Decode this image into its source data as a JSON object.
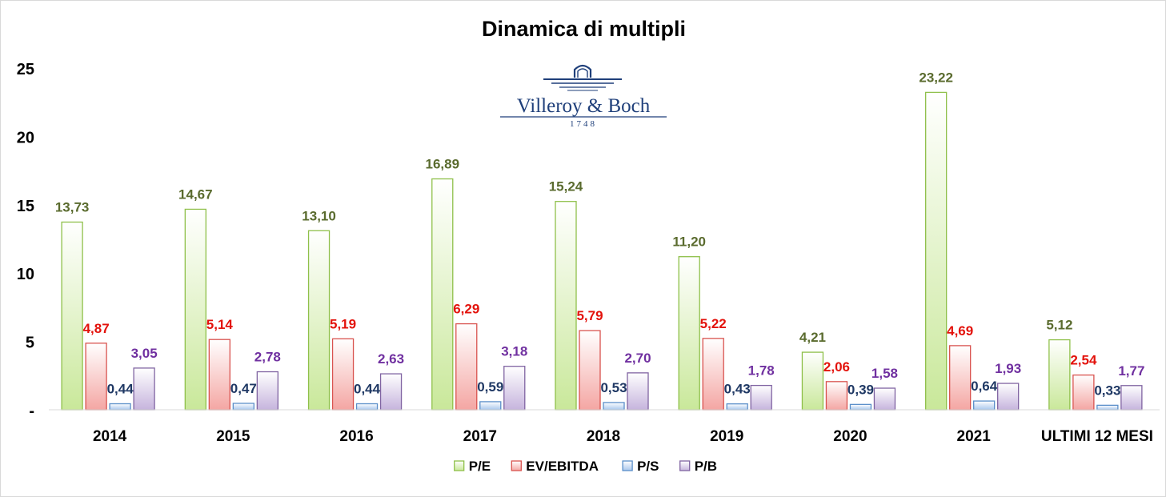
{
  "chart_data": {
    "type": "bar",
    "title": "Dinamica  di multipli",
    "categories": [
      "2014",
      "2015",
      "2016",
      "2017",
      "2018",
      "2019",
      "2020",
      "2021",
      "ULTIMI 12 MESI"
    ],
    "series": [
      {
        "name": "P/E",
        "values": [
          13.73,
          14.67,
          13.1,
          16.89,
          15.24,
          11.2,
          4.21,
          23.22,
          5.12
        ],
        "labels": [
          "13,73",
          "14,67",
          "13,10",
          "16,89",
          "15,24",
          "11,20",
          "4,21",
          "23,22",
          "5,12"
        ],
        "color": "#8fc04a",
        "fill_light": "#ffffff",
        "fill_dark": "#c9e89a",
        "label_color": "#5a6b2e"
      },
      {
        "name": "EV/EBITDA",
        "values": [
          4.87,
          5.14,
          5.19,
          6.29,
          5.79,
          5.22,
          2.06,
          4.69,
          2.54
        ],
        "labels": [
          "4,87",
          "5,14",
          "5,19",
          "6,29",
          "5,79",
          "5,22",
          "2,06",
          "4,69",
          "2,54"
        ],
        "color": "#d9534f",
        "fill_light": "#ffffff",
        "fill_dark": "#f4a6a3",
        "label_color": "#e3120b"
      },
      {
        "name": "P/S",
        "values": [
          0.44,
          0.47,
          0.44,
          0.59,
          0.53,
          0.43,
          0.39,
          0.64,
          0.33
        ],
        "labels": [
          "0,44",
          "0,47",
          "0,44",
          "0,59",
          "0,53",
          "0,43",
          "0,39",
          "0,64",
          "0,33"
        ],
        "color": "#5b8fc9",
        "fill_light": "#ffffff",
        "fill_dark": "#a9c7ec",
        "label_color": "#1f3864"
      },
      {
        "name": "P/B",
        "values": [
          3.05,
          2.78,
          2.63,
          3.18,
          2.7,
          1.78,
          1.58,
          1.93,
          1.77
        ],
        "labels": [
          "3,05",
          "2,78",
          "2,63",
          "3,18",
          "2,70",
          "1,78",
          "1,58",
          "1,93",
          "1,77"
        ],
        "color": "#8064a2",
        "fill_light": "#ffffff",
        "fill_dark": "#c6b4dd",
        "label_color": "#7030a0"
      }
    ],
    "yticks": [
      0,
      5,
      10,
      15,
      20,
      25
    ],
    "ytick_labels": [
      "-",
      "5",
      "10",
      "15",
      "20",
      "25"
    ],
    "ylim": [
      0,
      25
    ],
    "legend_position": "bottom",
    "grid": false
  },
  "logo": {
    "name": "Villeroy & Boch",
    "year": "1748",
    "color": "#1f3f7a",
    "icon": "villeroy-boch-logo-icon"
  }
}
